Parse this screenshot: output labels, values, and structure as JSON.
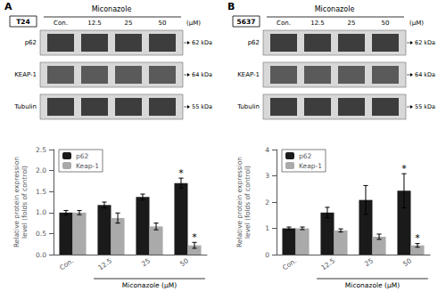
{
  "chart_data": [
    {
      "type": "blot",
      "title": "A",
      "subtitle": "T24",
      "xlabel": "Miconazole",
      "categories": [
        "Con.",
        "12.5",
        "25",
        "50"
      ],
      "series": [
        {
          "name": "p62",
          "color": "#222222"
        },
        {
          "name": "KEAP-1",
          "color": "#444444"
        },
        {
          "name": "Tubulin",
          "color": "#222222"
        }
      ],
      "annotations": [
        {
          "text": "(μM)"
        },
        {
          "text": "62 kDa",
          "series": "p62"
        },
        {
          "text": "64 kDa",
          "series": "KEAP-1"
        },
        {
          "text": "55 kDa",
          "series": "Tubulin"
        }
      ]
    },
    {
      "type": "blot",
      "title": "B",
      "subtitle": "5637",
      "xlabel": "Miconazole",
      "categories": [
        "Con.",
        "12.5",
        "25",
        "50"
      ],
      "series": [
        {
          "name": "p62",
          "color": "#222222"
        },
        {
          "name": "KEAP-1",
          "color": "#444444"
        },
        {
          "name": "Tubulin",
          "color": "#222222"
        }
      ],
      "annotations": [
        {
          "text": "(μM)"
        },
        {
          "text": "62 kDa",
          "series": "p62"
        },
        {
          "text": "64 kDa",
          "series": "KEAP-1"
        },
        {
          "text": "55 kDa",
          "series": "Tubulin"
        }
      ]
    },
    {
      "type": "bar",
      "categories": [
        "Con.",
        "12.5",
        "25",
        "50"
      ],
      "series": [
        {
          "name": "p62",
          "color": "#1a1a1a",
          "values": [
            1.0,
            1.18,
            1.37,
            1.7
          ],
          "errors": [
            0.05,
            0.07,
            0.07,
            0.12
          ]
        },
        {
          "name": "Keap-1",
          "color": "#aaaaaa",
          "values": [
            1.0,
            0.87,
            0.67,
            0.22
          ],
          "errors": [
            0.05,
            0.12,
            0.08,
            0.07
          ]
        }
      ],
      "ylim": [
        0,
        2.5
      ],
      "yticks": [
        {
          "value": 0,
          "label": "0.0"
        },
        0.5,
        {
          "value": 1,
          "label": "1.0"
        },
        1.5,
        {
          "value": 2,
          "label": "2.0"
        },
        2.5
      ],
      "ylabel": "Relative protein expression\nlevel (folds of control)",
      "xlabel": "Miconazole (μM)",
      "legend": "upper left",
      "grid": false,
      "annotations": [
        {
          "text": "*",
          "series": "p62",
          "category": "50"
        },
        {
          "text": "*",
          "series": "Keap-1",
          "category": "50"
        }
      ]
    },
    {
      "type": "bar",
      "categories": [
        "Con.",
        "12.5",
        "25",
        "50"
      ],
      "series": [
        {
          "name": "p62",
          "color": "#1a1a1a",
          "values": [
            1.0,
            1.6,
            2.08,
            2.43
          ],
          "errors": [
            0.05,
            0.2,
            0.55,
            0.65
          ]
        },
        {
          "name": "Keap-1",
          "color": "#aaaaaa",
          "values": [
            1.0,
            0.92,
            0.68,
            0.35
          ],
          "errors": [
            0.05,
            0.06,
            0.1,
            0.07
          ]
        }
      ],
      "ylim": [
        0,
        4
      ],
      "yticks": [
        0,
        1,
        2,
        3,
        4
      ],
      "ylabel": "Relative protein expression\nlevel (folds of control)",
      "xlabel": "Miconazole (μM)",
      "legend": "upper left",
      "grid": false,
      "annotations": [
        {
          "text": "*",
          "series": "p62",
          "category": "50"
        },
        {
          "text": "*",
          "series": "Keap-1",
          "category": "50"
        }
      ]
    }
  ]
}
